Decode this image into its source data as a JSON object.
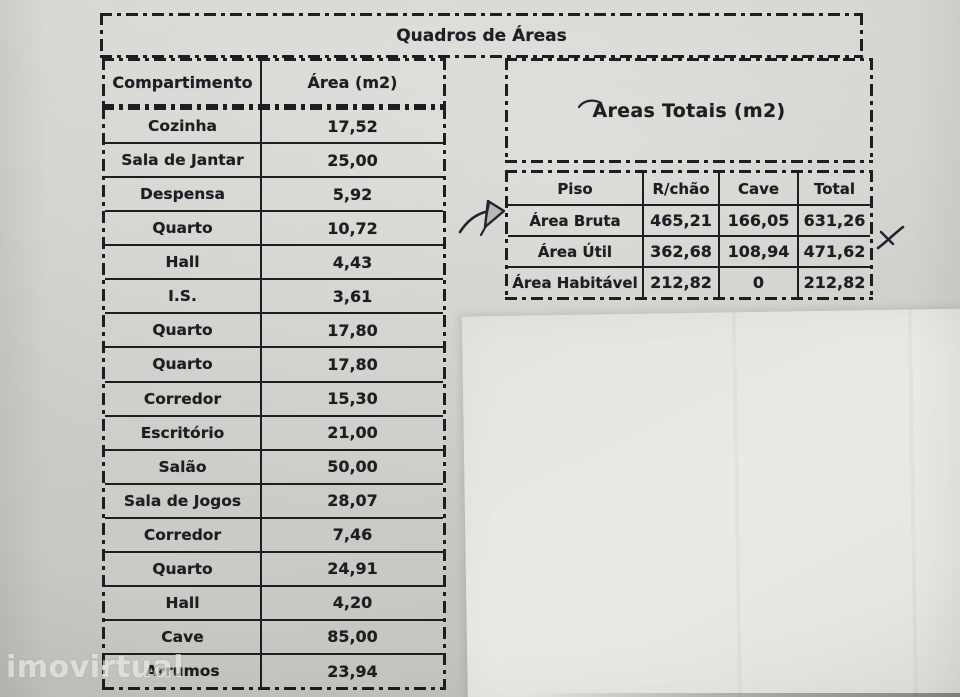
{
  "title": "Quadros de Áreas",
  "watermark": "imovirtual",
  "colors": {
    "ink": "#1d1d22",
    "paper": "#cbccc7",
    "white_sheet": "#e8e7e3",
    "pen_ink": "#23232e"
  },
  "left_table": {
    "headers": [
      "Compartimento",
      "Área (m2)"
    ],
    "rows": [
      [
        "Cozinha",
        "17,52"
      ],
      [
        "Sala de Jantar",
        "25,00"
      ],
      [
        "Despensa",
        "5,92"
      ],
      [
        "Quarto",
        "10,72"
      ],
      [
        "Hall",
        "4,43"
      ],
      [
        "I.S.",
        "3,61"
      ],
      [
        "Quarto",
        "17,80"
      ],
      [
        "Quarto",
        "17,80"
      ],
      [
        "Corredor",
        "15,30"
      ],
      [
        "Escritório",
        "21,00"
      ],
      [
        "Salão",
        "50,00"
      ],
      [
        "Sala de Jogos",
        "28,07"
      ],
      [
        "Corredor",
        "7,46"
      ],
      [
        "Quarto",
        "24,91"
      ],
      [
        "Hall",
        "4,20"
      ],
      [
        "Cave",
        "85,00"
      ],
      [
        "Arrumos",
        "23,94"
      ]
    ]
  },
  "totals_table": {
    "title": "Areas Totais (m2)",
    "headers": [
      "Piso",
      "R/chão",
      "Cave",
      "Total"
    ],
    "rows": [
      [
        "Área Bruta",
        "465,21",
        "166,05",
        "631,26"
      ],
      [
        "Área Útil",
        "362,68",
        "108,94",
        "471,62"
      ],
      [
        "Área Habitável",
        "212,82",
        "0",
        "212,82"
      ]
    ]
  },
  "annotations": {
    "arrow_icon": "pen-arrow-icon",
    "cross_icon": "pen-x-mark-icon",
    "squiggle_icon": "pen-squiggle-icon"
  }
}
